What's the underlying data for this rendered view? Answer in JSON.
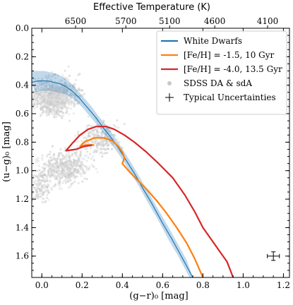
{
  "chart_data": {
    "type": "line",
    "top_axis_label": "Effective Temperature (K)",
    "top_ticks": [
      {
        "label": "6500",
        "x": 0.17
      },
      {
        "label": "5700",
        "x": 0.365
      },
      {
        "label": "5100",
        "x": 0.535
      },
      {
        "label": "4600",
        "x": 0.71
      },
      {
        "label": "4100",
        "x": 0.915
      }
    ],
    "xlabel": "(g−r)₀ [mag]",
    "ylabel": "(u−g)₀ [mag]",
    "xlim": [
      -0.05,
      1.23
    ],
    "ylim": [
      1.75,
      0.0
    ],
    "y_inverted": true,
    "x_ticks": [
      "0.0",
      "0.2",
      "0.4",
      "0.6",
      "0.8",
      "1.0",
      "1.2"
    ],
    "y_ticks": [
      "0.0",
      "0.2",
      "0.4",
      "0.6",
      "0.8",
      "1.0",
      "1.2",
      "1.4",
      "1.6"
    ],
    "legend_position": "top-right",
    "legend": [
      {
        "label": "White Dwarfs",
        "color": "#1f77b4",
        "kind": "line"
      },
      {
        "label": "[Fe/H] = -1.5, 10 Gyr",
        "color": "#ff7f0e",
        "kind": "line"
      },
      {
        "label": "[Fe/H] = -4.0, 13.5 Gyr",
        "color": "#d62728",
        "kind": "line"
      },
      {
        "label": "SDSS DA & sdA",
        "color": "#c8c8c8",
        "kind": "points"
      },
      {
        "label": "Typical Uncertainties",
        "color": "#000000",
        "kind": "errorbar"
      }
    ],
    "series": [
      {
        "name": "White Dwarfs",
        "color": "#1f77b4",
        "x": [
          -0.05,
          -0.02,
          0.0,
          0.03,
          0.06,
          0.09,
          0.12,
          0.15,
          0.18,
          0.21,
          0.24,
          0.27,
          0.3,
          0.34,
          0.38,
          0.42,
          0.46,
          0.5,
          0.55,
          0.6,
          0.65,
          0.7,
          0.75
        ],
        "y": [
          0.38,
          0.37,
          0.37,
          0.37,
          0.38,
          0.39,
          0.41,
          0.44,
          0.48,
          0.53,
          0.58,
          0.63,
          0.69,
          0.76,
          0.84,
          0.93,
          1.02,
          1.12,
          1.24,
          1.37,
          1.49,
          1.62,
          1.75
        ],
        "band_half_width": [
          0.07,
          0.07,
          0.07,
          0.07,
          0.07,
          0.07,
          0.07,
          0.07,
          0.07,
          0.07,
          0.07,
          0.07,
          0.07,
          0.08,
          0.08,
          0.09,
          0.09,
          0.1,
          0.1,
          0.11,
          0.11,
          0.12,
          0.12
        ]
      },
      {
        "name": "[Fe/H] = -1.5, 10 Gyr",
        "color": "#ff7f0e",
        "x": [
          0.26,
          0.22,
          0.19,
          0.21,
          0.26,
          0.31,
          0.35,
          0.38,
          0.4,
          0.41,
          0.4,
          0.43,
          0.47,
          0.52,
          0.57,
          0.62,
          0.67,
          0.72,
          0.76,
          0.8
        ],
        "y": [
          0.82,
          0.82,
          0.83,
          0.8,
          0.77,
          0.77,
          0.79,
          0.83,
          0.87,
          0.91,
          0.95,
          1.0,
          1.06,
          1.13,
          1.21,
          1.3,
          1.4,
          1.51,
          1.62,
          1.75
        ]
      },
      {
        "name": "[Fe/H] = -4.0, 13.5 Gyr",
        "color": "#d62728",
        "x": [
          0.25,
          0.21,
          0.17,
          0.12,
          0.15,
          0.19,
          0.23,
          0.27,
          0.32,
          0.36,
          0.41,
          0.46,
          0.52,
          0.58,
          0.65,
          0.71,
          0.76,
          0.8,
          0.84,
          0.88,
          0.92,
          0.95
        ],
        "y": [
          0.82,
          0.83,
          0.85,
          0.86,
          0.81,
          0.75,
          0.71,
          0.69,
          0.69,
          0.71,
          0.75,
          0.8,
          0.87,
          0.95,
          1.05,
          1.17,
          1.29,
          1.4,
          1.48,
          1.56,
          1.64,
          1.75
        ]
      }
    ],
    "typical_uncertainty": {
      "x": 1.15,
      "y": 1.6,
      "xerr": 0.03,
      "yerr": 0.03
    }
  }
}
